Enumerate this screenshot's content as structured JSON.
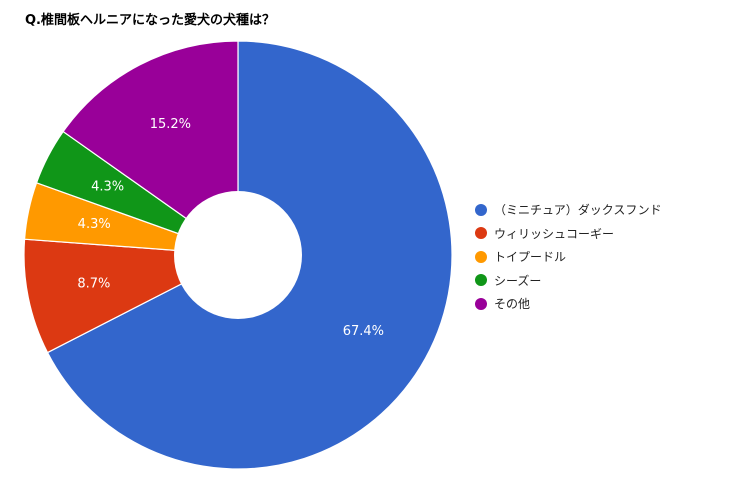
{
  "chart_data": {
    "type": "pie",
    "title": "Q.椎間板ヘルニアになった愛犬の犬種は？",
    "donut": true,
    "legend_position": "right",
    "categories": [
      "（ミニチュア）ダックスフンド",
      "ウィリッシュコーギー",
      "トイプードル",
      "シーズー",
      "その他"
    ],
    "values": [
      67.4,
      8.7,
      4.3,
      4.3,
      15.2
    ],
    "value_labels": [
      "67.4%",
      "8.7%",
      "4.3%",
      "4.3%",
      "15.2%"
    ],
    "colors": [
      "#3366cc",
      "#dc3912",
      "#ff9900",
      "#109618",
      "#990099"
    ]
  }
}
